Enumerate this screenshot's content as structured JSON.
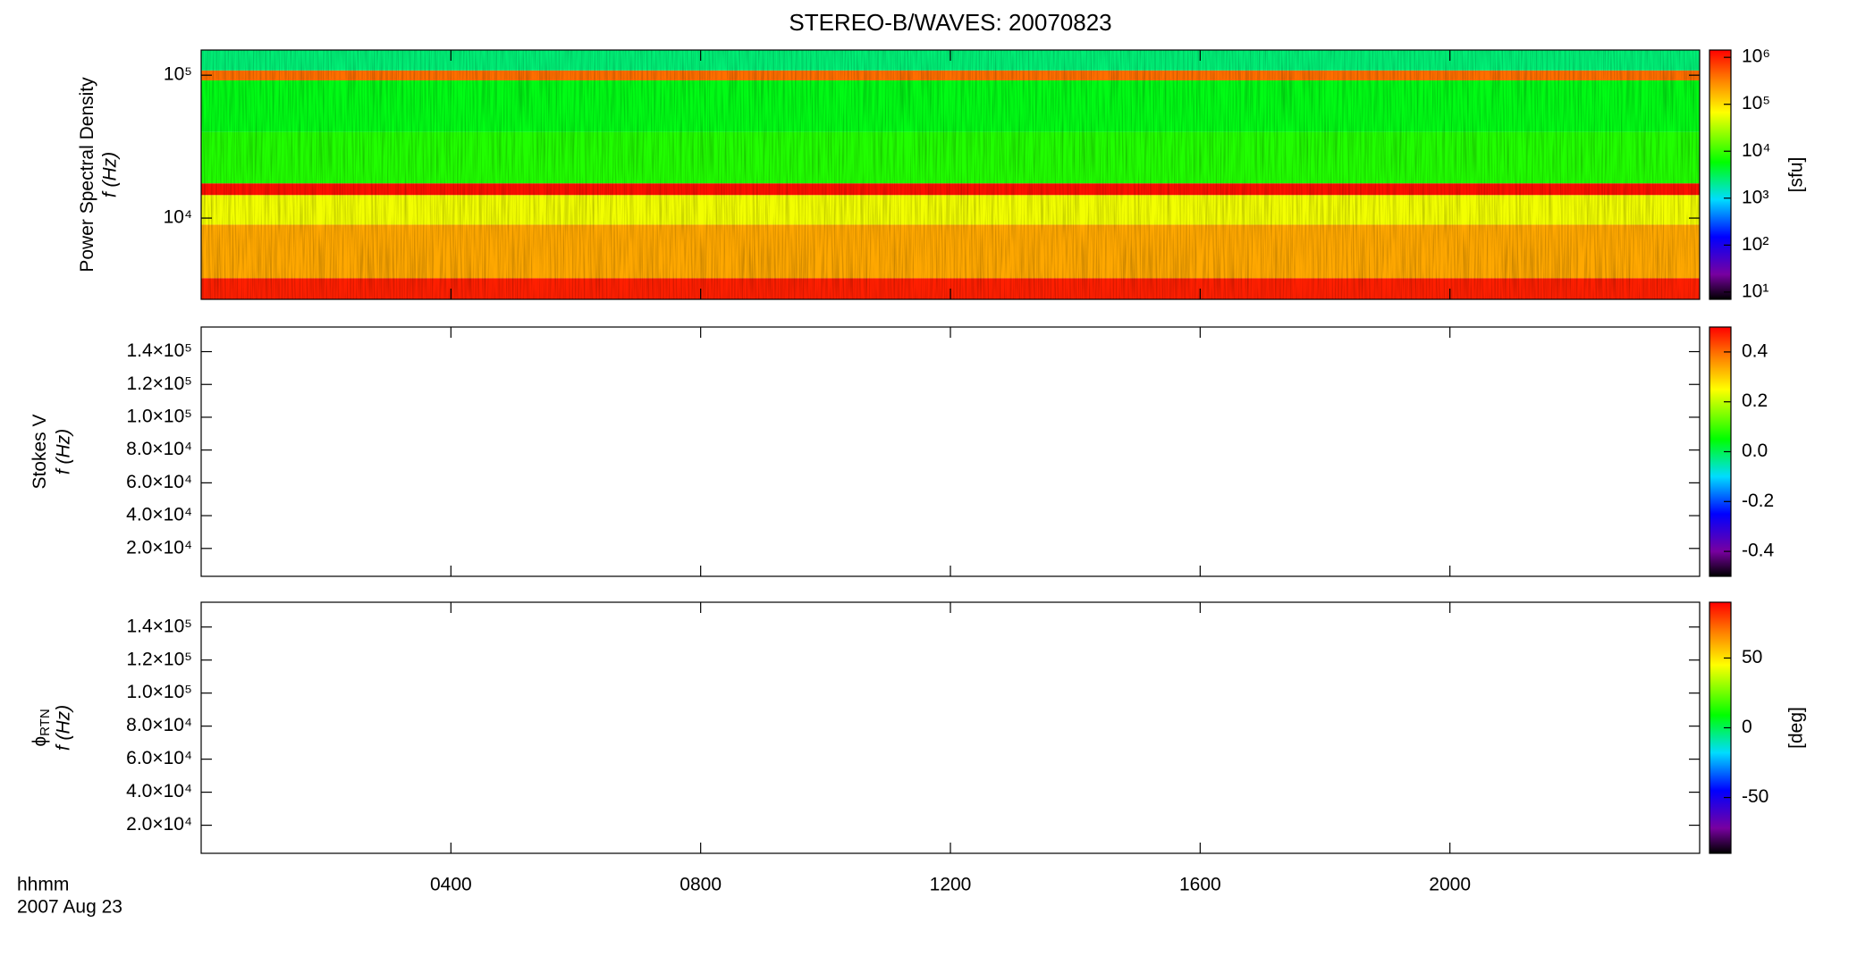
{
  "title": "STEREO-B/WAVES: 20070823",
  "x_axis": {
    "label": "hhmm",
    "date": "2007 Aug 23",
    "xlim": [
      0,
      24
    ],
    "xticks": [
      {
        "value": 4,
        "label": "0400"
      },
      {
        "value": 8,
        "label": "0800"
      },
      {
        "value": 12,
        "label": "1200"
      },
      {
        "value": 16,
        "label": "1600"
      },
      {
        "value": 20,
        "label": "2000"
      }
    ]
  },
  "chart_data": [
    {
      "type": "spectrogram",
      "y_label": "Power Spectral Density",
      "y_label_2": "f (Hz)",
      "log_y": true,
      "ylim": [
        2700,
        150000
      ],
      "yticks": [
        {
          "value": 10000,
          "label": "10⁴"
        },
        {
          "value": 100000,
          "label": "10⁵"
        }
      ],
      "bands": [
        {
          "f": [
            2700,
            3800
          ],
          "value": 1000000
        },
        {
          "f": [
            3800,
            9000
          ],
          "value": 200000
        },
        {
          "f": [
            9000,
            14500
          ],
          "value": 60000
        },
        {
          "f": [
            14500,
            17500
          ],
          "value": 1200000
        },
        {
          "f": [
            17500,
            40000
          ],
          "value": 8000
        },
        {
          "f": [
            40000,
            92000
          ],
          "value": 5000
        },
        {
          "f": [
            92000,
            108000
          ],
          "value": 400000
        },
        {
          "f": [
            108000,
            150000
          ],
          "value": 2500
        }
      ],
      "colorbar_log": true,
      "colorbar_lim": [
        7,
        1430000
      ],
      "colorbar_ticks": [
        {
          "value": 10,
          "label": "10¹"
        },
        {
          "value": 100,
          "label": "10²"
        },
        {
          "value": 1000,
          "label": "10³"
        },
        {
          "value": 10000,
          "label": "10⁴"
        },
        {
          "value": 100000,
          "label": "10⁵"
        },
        {
          "value": 1000000,
          "label": "10⁶"
        }
      ],
      "colorbar_label": "[sfu]"
    },
    {
      "type": "spectrogram",
      "y_label": "Stokes V",
      "y_label_2": "f (Hz)",
      "log_y": false,
      "ylim": [
        3000,
        155000
      ],
      "yticks": [
        {
          "value": 20000,
          "label": "2.0×10⁴"
        },
        {
          "value": 40000,
          "label": "4.0×10⁴"
        },
        {
          "value": 60000,
          "label": "6.0×10⁴"
        },
        {
          "value": 80000,
          "label": "8.0×10⁴"
        },
        {
          "value": 100000,
          "label": "1.0×10⁵"
        },
        {
          "value": 120000,
          "label": "1.2×10⁵"
        },
        {
          "value": 140000,
          "label": "1.4×10⁵"
        }
      ],
      "bands": [],
      "colorbar_log": false,
      "colorbar_lim": [
        -0.5,
        0.5
      ],
      "colorbar_ticks": [
        -0.4,
        -0.2,
        {
          "value": 0,
          "label": "0.0"
        },
        0.2,
        0.4
      ]
    },
    {
      "type": "spectrogram",
      "y_label": "ϕ",
      "y_label_sub": "RTN",
      "y_label_2": "f (Hz)",
      "log_y": false,
      "ylim": [
        3000,
        155000
      ],
      "yticks": [
        {
          "value": 20000,
          "label": "2.0×10⁴"
        },
        {
          "value": 40000,
          "label": "4.0×10⁴"
        },
        {
          "value": 60000,
          "label": "6.0×10⁴"
        },
        {
          "value": 80000,
          "label": "8.0×10⁴"
        },
        {
          "value": 100000,
          "label": "1.0×10⁵"
        },
        {
          "value": 120000,
          "label": "1.2×10⁵"
        },
        {
          "value": 140000,
          "label": "1.4×10⁵"
        }
      ],
      "bands": [],
      "colorbar_log": false,
      "colorbar_lim": [
        -90,
        90
      ],
      "colorbar_ticks": [
        -50,
        0,
        50
      ],
      "colorbar_label": "[deg]"
    }
  ]
}
